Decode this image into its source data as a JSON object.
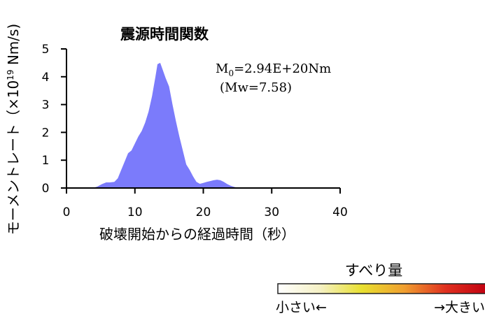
{
  "chart_data": {
    "type": "area",
    "title": "震源時間関数",
    "xlabel": "破壊開始からの経過時間（秒）",
    "ylabel": {
      "prefix": "モーメントレート（×10",
      "exp": "19",
      "suffix": " Nm/s)"
    },
    "xlim": [
      0,
      40
    ],
    "ylim": [
      0,
      5
    ],
    "x_ticks": [
      "0",
      "10",
      "20",
      "30",
      "40"
    ],
    "y_ticks": [
      "0",
      "1",
      "2",
      "3",
      "4",
      "5"
    ],
    "series": [
      {
        "x": [
          0,
          3.8,
          4.5,
          5.2,
          5.8,
          6.3,
          7.0,
          7.5,
          8.0,
          8.5,
          9.0,
          9.5,
          10.0,
          10.5,
          11.0,
          11.5,
          12.0,
          12.5,
          13.0,
          13.3,
          13.7,
          14.0,
          14.5,
          15.0,
          15.5,
          16.0,
          16.5,
          17.0,
          17.5,
          18.0,
          18.5,
          19.0,
          19.5,
          20.0,
          20.5,
          21.0,
          21.5,
          22.0,
          22.5,
          23.0,
          23.5,
          24.0,
          24.5,
          25.0,
          26.0,
          40
        ],
        "values": [
          0,
          0,
          0.05,
          0.14,
          0.2,
          0.2,
          0.22,
          0.35,
          0.65,
          0.95,
          1.25,
          1.35,
          1.6,
          1.85,
          2.05,
          2.35,
          2.75,
          3.3,
          4.0,
          4.45,
          4.5,
          4.3,
          3.95,
          3.65,
          3.0,
          2.4,
          1.85,
          1.35,
          0.85,
          0.65,
          0.42,
          0.22,
          0.15,
          0.18,
          0.22,
          0.25,
          0.28,
          0.3,
          0.28,
          0.22,
          0.14,
          0.08,
          0.04,
          0.01,
          0,
          0
        ]
      }
    ],
    "color": "#7b7bfb",
    "annotation": {
      "m0_prefix": "M",
      "m0_sub": "0",
      "m0_value": "=2.94E+20Nm",
      "mw": "(Mw=7.58)"
    },
    "grid": false
  },
  "legend": {
    "title": "すべり量",
    "low_label": "小さい←",
    "high_label": "→大きい",
    "gradient": [
      "#ffffff",
      "#f5f1c5",
      "#e8e030",
      "#f0a030",
      "#e03020",
      "#c00010"
    ]
  }
}
